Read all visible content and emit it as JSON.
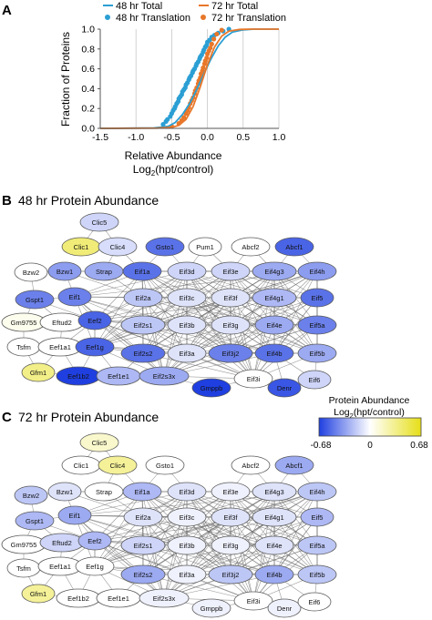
{
  "panels": {
    "a": {
      "letter": "A"
    },
    "b": {
      "letter": "B",
      "title": "48 hr Protein Abundance"
    },
    "c": {
      "letter": "C",
      "title": "72 hr Protein Abundance"
    }
  },
  "colorbar": {
    "title": "Protein Abundance",
    "subtitle_prefix": "Log",
    "subtitle_sub": "2",
    "subtitle_suffix": "(hpt/control)",
    "min_label": "-0.68",
    "mid_label": "0",
    "max_label": "0.68",
    "min": -0.68,
    "max": 0.68,
    "colors": {
      "low": "#1f3fe0",
      "mid": "#ffffff",
      "high": "#e6df18"
    }
  },
  "chart_data": {
    "type": "line",
    "xlabel": "Relative Abundance",
    "xlabel2_prefix": "Log",
    "xlabel2_sub": "2",
    "xlabel2_suffix": "(hpt/control)",
    "ylabel": "Fraction of Proteins",
    "xlim": [
      -1.5,
      1.0
    ],
    "ylim": [
      0,
      1.0
    ],
    "xticks": [
      "-1.5",
      "-1.0",
      "-0.5",
      "0.0",
      "0.5",
      "1.0"
    ],
    "yticks": [
      "0.0",
      "0.2",
      "0.4",
      "0.6",
      "0.8",
      "1.0"
    ],
    "xtick_values": [
      -1.5,
      -1.0,
      -0.5,
      0.0,
      0.5,
      1.0
    ],
    "ytick_values": [
      0,
      0.2,
      0.4,
      0.6,
      0.8,
      1.0
    ],
    "grid": "vertical",
    "legend_position": "top",
    "series": [
      {
        "name": "48 hr Total",
        "kind": "line",
        "color": "#2b9fd4",
        "x": [
          -1.5,
          -0.75,
          -0.55,
          -0.45,
          -0.35,
          -0.25,
          -0.15,
          -0.05,
          0.05,
          0.15,
          0.25,
          0.35,
          0.5,
          0.65,
          1.0
        ],
        "y": [
          0,
          0.005,
          0.02,
          0.06,
          0.14,
          0.25,
          0.39,
          0.55,
          0.7,
          0.83,
          0.92,
          0.97,
          0.993,
          1.0,
          1.0
        ]
      },
      {
        "name": "72 hr Total",
        "kind": "line",
        "color": "#e8772a",
        "x": [
          -1.5,
          -0.7,
          -0.5,
          -0.4,
          -0.3,
          -0.2,
          -0.1,
          0.0,
          0.1,
          0.2,
          0.3,
          0.45,
          0.6,
          1.0
        ],
        "y": [
          0,
          0.003,
          0.01,
          0.03,
          0.09,
          0.22,
          0.42,
          0.64,
          0.82,
          0.93,
          0.98,
          0.997,
          1.0,
          1.0
        ]
      },
      {
        "name": "48 hr Translation",
        "kind": "scatter",
        "color": "#2b9fd4",
        "x": [
          -0.62,
          -0.58,
          -0.56,
          -0.52,
          -0.5,
          -0.48,
          -0.46,
          -0.45,
          -0.43,
          -0.41,
          -0.4,
          -0.38,
          -0.36,
          -0.35,
          -0.33,
          -0.31,
          -0.3,
          -0.28,
          -0.26,
          -0.25,
          -0.23,
          -0.21,
          -0.2,
          -0.18,
          -0.16,
          -0.15,
          -0.13,
          -0.11,
          -0.1,
          -0.08,
          -0.06,
          -0.05,
          -0.03,
          -0.01,
          0.0,
          0.03,
          0.06,
          0.1,
          0.15,
          0.22,
          0.3
        ],
        "y": [
          0.04,
          0.07,
          0.09,
          0.12,
          0.15,
          0.18,
          0.2,
          0.22,
          0.25,
          0.27,
          0.3,
          0.32,
          0.34,
          0.37,
          0.39,
          0.41,
          0.44,
          0.46,
          0.49,
          0.51,
          0.53,
          0.56,
          0.58,
          0.6,
          0.63,
          0.65,
          0.67,
          0.7,
          0.72,
          0.74,
          0.77,
          0.79,
          0.82,
          0.84,
          0.87,
          0.89,
          0.92,
          0.94,
          0.96,
          0.98,
          1.0
        ]
      },
      {
        "name": "72 hr Translation",
        "kind": "scatter",
        "color": "#e8772a",
        "x": [
          -0.5,
          -0.4,
          -0.36,
          -0.33,
          -0.3,
          -0.28,
          -0.26,
          -0.24,
          -0.22,
          -0.2,
          -0.18,
          -0.17,
          -0.15,
          -0.13,
          -0.12,
          -0.1,
          -0.09,
          -0.07,
          -0.06,
          -0.04,
          -0.03,
          -0.01,
          0.0,
          0.02,
          0.04,
          0.06,
          0.09,
          0.13,
          0.2
        ],
        "y": [
          0.02,
          0.05,
          0.08,
          0.11,
          0.15,
          0.18,
          0.21,
          0.25,
          0.28,
          0.31,
          0.35,
          0.38,
          0.41,
          0.45,
          0.48,
          0.51,
          0.55,
          0.58,
          0.61,
          0.65,
          0.68,
          0.71,
          0.75,
          0.78,
          0.81,
          0.85,
          0.9,
          0.95,
          0.99
        ]
      }
    ]
  },
  "networks": {
    "b": {
      "nodes": [
        {
          "label": "Clic5",
          "value": -0.15
        },
        {
          "label": "Clic1",
          "value": 0.4
        },
        {
          "label": "Clic4",
          "value": -0.12
        },
        {
          "label": "Gsto1",
          "value": -0.5
        },
        {
          "label": "Pum1",
          "value": 0.0
        },
        {
          "label": "Abcf2",
          "value": 0.0
        },
        {
          "label": "Abcf1",
          "value": -0.55
        },
        {
          "label": "Bzw2",
          "value": 0.0
        },
        {
          "label": "Bzw1",
          "value": -0.35
        },
        {
          "label": "Strap",
          "value": -0.3
        },
        {
          "label": "Eif1a",
          "value": -0.5
        },
        {
          "label": "Eif3d",
          "value": -0.15
        },
        {
          "label": "Eif3e",
          "value": -0.15
        },
        {
          "label": "Eif4g3",
          "value": -0.3
        },
        {
          "label": "Eif4h",
          "value": -0.35
        },
        {
          "label": "Gspt1",
          "value": -0.45
        },
        {
          "label": "Eif1",
          "value": -0.45
        },
        {
          "label": "Eif2a",
          "value": -0.2
        },
        {
          "label": "Eif3c",
          "value": -0.1
        },
        {
          "label": "Eif3f",
          "value": -0.1
        },
        {
          "label": "Eif4g1",
          "value": -0.25
        },
        {
          "label": "Eif5",
          "value": -0.5
        },
        {
          "label": "Gm9755",
          "value": 0.05
        },
        {
          "label": "Eftud2",
          "value": 0.0
        },
        {
          "label": "Eef2",
          "value": -0.55
        },
        {
          "label": "Eif2s1",
          "value": -0.2
        },
        {
          "label": "Eif3b",
          "value": -0.1
        },
        {
          "label": "Eif3g",
          "value": -0.1
        },
        {
          "label": "Eif4e",
          "value": -0.3
        },
        {
          "label": "Eif5a",
          "value": -0.45
        },
        {
          "label": "Tsfm",
          "value": 0.0
        },
        {
          "label": "Eef1a1",
          "value": 0.0
        },
        {
          "label": "Eef1g",
          "value": -0.55
        },
        {
          "label": "Eif2s2",
          "value": -0.5
        },
        {
          "label": "Eif3a",
          "value": -0.1
        },
        {
          "label": "Eif3j2",
          "value": -0.45
        },
        {
          "label": "Eif4b",
          "value": -0.5
        },
        {
          "label": "Eif5b",
          "value": -0.3
        },
        {
          "label": "Gfm1",
          "value": 0.35
        },
        {
          "label": "Eef1b2",
          "value": -0.68
        },
        {
          "label": "Eef1e1",
          "value": -0.25
        },
        {
          "label": "Eif2s3x",
          "value": -0.3
        },
        {
          "label": "Gmppb",
          "value": -0.68
        },
        {
          "label": "Eif3i",
          "value": 0.0
        },
        {
          "label": "Denr",
          "value": -0.6
        },
        {
          "label": "Eif6",
          "value": -0.15
        }
      ]
    },
    "c": {
      "nodes": [
        {
          "label": "Clic5",
          "value": 0.15
        },
        {
          "label": "Clic1",
          "value": 0.0
        },
        {
          "label": "Clic4",
          "value": 0.3
        },
        {
          "label": "Gsto1",
          "value": 0.0
        },
        {
          "label": "Abcf2",
          "value": 0.0
        },
        {
          "label": "Abcf1",
          "value": -0.3
        },
        {
          "label": "Bzw2",
          "value": -0.2
        },
        {
          "label": "Bzw1",
          "value": -0.1
        },
        {
          "label": "Strap",
          "value": 0.0
        },
        {
          "label": "Eif1a",
          "value": -0.25
        },
        {
          "label": "Eif3d",
          "value": -0.1
        },
        {
          "label": "Eif3e",
          "value": -0.05
        },
        {
          "label": "Eif4g3",
          "value": -0.1
        },
        {
          "label": "Eif4h",
          "value": -0.2
        },
        {
          "label": "Gspt1",
          "value": -0.25
        },
        {
          "label": "Eif1",
          "value": -0.3
        },
        {
          "label": "Eif2a",
          "value": -0.1
        },
        {
          "label": "Eif3c",
          "value": -0.05
        },
        {
          "label": "Eif3f",
          "value": -0.1
        },
        {
          "label": "Eif4g1",
          "value": -0.1
        },
        {
          "label": "Eif5",
          "value": -0.25
        },
        {
          "label": "Gm9755",
          "value": 0.0
        },
        {
          "label": "Eftud2",
          "value": -0.15
        },
        {
          "label": "Eef2",
          "value": -0.25
        },
        {
          "label": "Eif2s1",
          "value": -0.15
        },
        {
          "label": "Eif3b",
          "value": -0.05
        },
        {
          "label": "Eif3g",
          "value": -0.05
        },
        {
          "label": "Eif4e",
          "value": -0.1
        },
        {
          "label": "Eif5a",
          "value": -0.2
        },
        {
          "label": "Tsfm",
          "value": 0.0
        },
        {
          "label": "Eef1a1",
          "value": 0.0
        },
        {
          "label": "Eef1g",
          "value": 0.0
        },
        {
          "label": "Eif2s2",
          "value": -0.3
        },
        {
          "label": "Eif3a",
          "value": -0.05
        },
        {
          "label": "Eif3j2",
          "value": -0.2
        },
        {
          "label": "Eif4b",
          "value": -0.3
        },
        {
          "label": "Eif5b",
          "value": -0.2
        },
        {
          "label": "Gfm1",
          "value": 0.3
        },
        {
          "label": "Eef1b2",
          "value": 0.0
        },
        {
          "label": "Eef1e1",
          "value": 0.0
        },
        {
          "label": "Eif2s3x",
          "value": -0.05
        },
        {
          "label": "Gmppb",
          "value": -0.05
        },
        {
          "label": "Eif3i",
          "value": 0.0
        },
        {
          "label": "Denr",
          "value": -0.05
        },
        {
          "label": "Eif6",
          "value": 0.0
        }
      ]
    }
  }
}
